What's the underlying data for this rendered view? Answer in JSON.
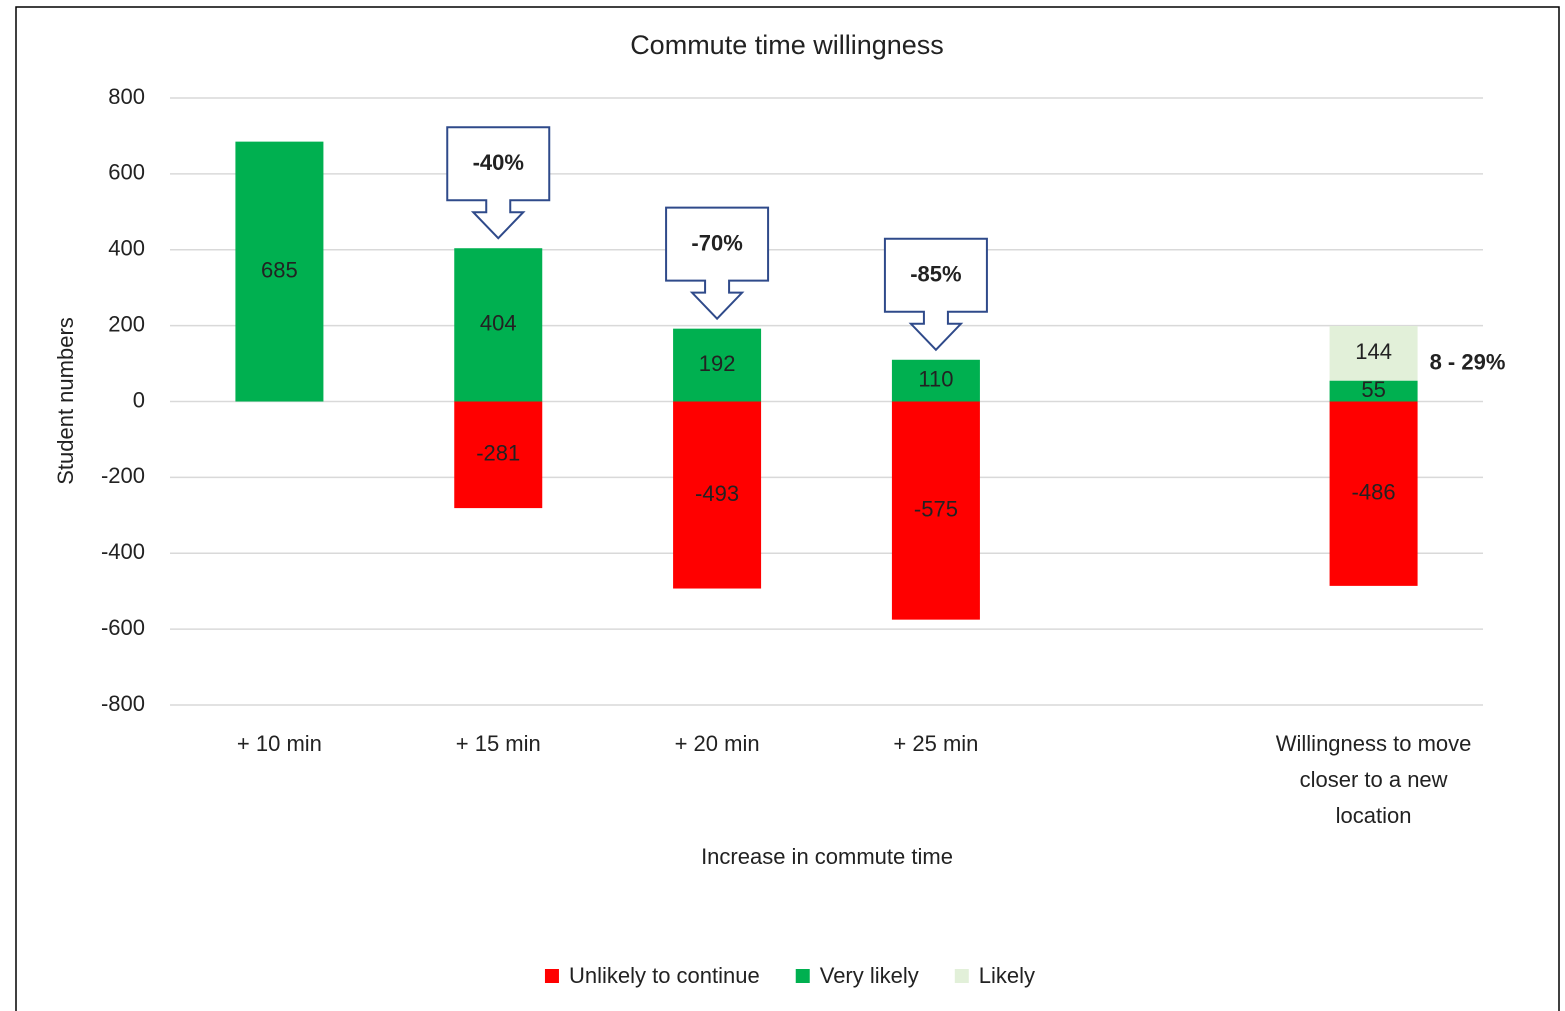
{
  "chart_data": {
    "type": "bar",
    "stacked": true,
    "title": "Commute time willingness",
    "x_label": "Increase in commute time",
    "y_label": "Student numbers",
    "categories": [
      "+ 10 min",
      "+ 15 min",
      "+ 20 min",
      "+ 25 min",
      null,
      "Willingness to move closer to a new location"
    ],
    "series": [
      {
        "name": "Unlikely to continue",
        "color": "#ff0000",
        "values": [
          null,
          -281,
          -493,
          -575,
          null,
          -486
        ]
      },
      {
        "name": "Very likely",
        "color": "#00b050",
        "values": [
          685,
          404,
          192,
          110,
          null,
          55
        ]
      },
      {
        "name": "Likely",
        "color": "#e2f0d9",
        "values": [
          null,
          null,
          null,
          null,
          null,
          144
        ]
      }
    ],
    "annotations": [
      null,
      "-40%",
      "-70%",
      "-85%",
      null,
      "8 - 29%"
    ],
    "ylim": [
      -800,
      800
    ],
    "yticks": [
      -800,
      -600,
      -400,
      -200,
      0,
      200,
      400,
      600,
      800
    ],
    "grid": true,
    "legend": "bottom"
  }
}
